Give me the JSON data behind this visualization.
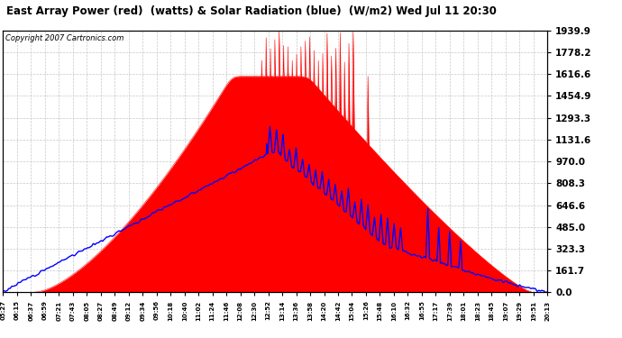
{
  "title": "East Array Power (red)  (watts) & Solar Radiation (blue)  (W/m2) Wed Jul 11 20:30",
  "copyright": "Copyright 2007 Cartronics.com",
  "background_color": "#ffffff",
  "plot_bg_color": "#ffffff",
  "y_ticks": [
    0.0,
    161.7,
    323.3,
    485.0,
    646.6,
    808.3,
    970.0,
    1131.6,
    1293.3,
    1454.9,
    1616.6,
    1778.2,
    1939.9
  ],
  "y_max": 1939.9,
  "y_min": 0.0,
  "red_color": "#ff0000",
  "blue_color": "#0000ff",
  "grid_color": "#c8c8c8",
  "x_labels": [
    "05:27",
    "06:15",
    "06:37",
    "06:59",
    "07:21",
    "07:43",
    "08:05",
    "08:27",
    "08:49",
    "09:12",
    "09:34",
    "09:56",
    "10:18",
    "10:40",
    "11:02",
    "11:24",
    "11:46",
    "12:08",
    "12:30",
    "12:52",
    "13:14",
    "13:36",
    "13:58",
    "14:20",
    "14:42",
    "15:04",
    "15:26",
    "15:48",
    "16:10",
    "16:32",
    "16:55",
    "17:17",
    "17:39",
    "18:01",
    "18:23",
    "18:45",
    "19:07",
    "19:29",
    "19:51",
    "20:13"
  ]
}
